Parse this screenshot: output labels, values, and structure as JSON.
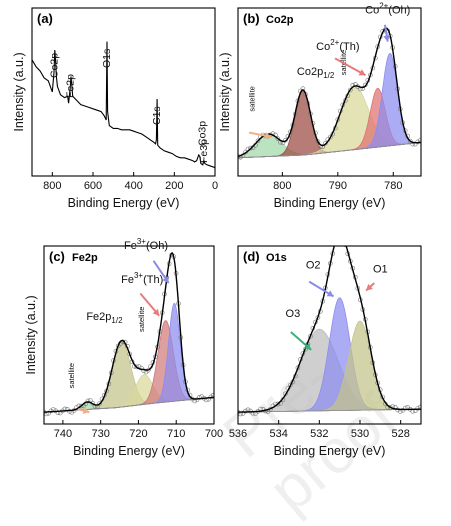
{
  "chart_data": [
    {
      "id": "a",
      "type": "line",
      "panel_label": "(a)",
      "xlabel": "Binding Energy (eV)",
      "ylabel": "Intensity (a.u.)",
      "xlim": [
        900,
        0
      ],
      "xticks": [
        800,
        600,
        400,
        200,
        0
      ],
      "survey": [
        [
          900,
          83
        ],
        [
          880,
          78
        ],
        [
          860,
          75
        ],
        [
          840,
          70
        ],
        [
          820,
          68
        ],
        [
          800,
          60
        ],
        [
          792,
          74
        ],
        [
          788,
          90
        ],
        [
          784,
          82
        ],
        [
          780,
          71
        ],
        [
          775,
          64
        ],
        [
          760,
          58
        ],
        [
          740,
          56
        ],
        [
          725,
          57
        ],
        [
          720,
          52
        ],
        [
          712,
          63
        ],
        [
          708,
          71
        ],
        [
          704,
          64
        ],
        [
          700,
          57
        ],
        [
          680,
          54
        ],
        [
          660,
          51
        ],
        [
          640,
          50
        ],
        [
          620,
          49
        ],
        [
          600,
          48
        ],
        [
          580,
          47
        ],
        [
          560,
          46
        ],
        [
          545,
          43
        ],
        [
          535,
          40
        ],
        [
          531,
          96
        ],
        [
          528,
          46
        ],
        [
          520,
          36
        ],
        [
          500,
          34
        ],
        [
          480,
          34
        ],
        [
          460,
          33
        ],
        [
          440,
          33
        ],
        [
          420,
          33
        ],
        [
          400,
          32
        ],
        [
          380,
          31
        ],
        [
          360,
          30
        ],
        [
          340,
          28
        ],
        [
          320,
          26
        ],
        [
          300,
          24
        ],
        [
          292,
          23
        ],
        [
          288,
          26
        ],
        [
          285,
          55
        ],
        [
          282,
          22
        ],
        [
          270,
          20
        ],
        [
          250,
          18
        ],
        [
          230,
          17
        ],
        [
          210,
          16
        ],
        [
          190,
          14
        ],
        [
          170,
          13
        ],
        [
          150,
          13
        ],
        [
          130,
          12
        ],
        [
          110,
          11
        ],
        [
          100,
          10
        ],
        [
          90,
          11
        ],
        [
          80,
          15
        ],
        [
          75,
          14
        ],
        [
          70,
          9
        ],
        [
          60,
          8
        ],
        [
          55,
          11
        ],
        [
          50,
          9
        ],
        [
          40,
          8
        ],
        [
          20,
          7
        ],
        [
          0,
          6
        ]
      ],
      "annotations": [
        {
          "text": "Co2p",
          "x": 790
        },
        {
          "text": "Fe2p",
          "x": 710
        },
        {
          "text": "O1s",
          "x": 531
        },
        {
          "text": "C1s",
          "x": 285
        },
        {
          "text": "Co3p",
          "x": 62
        },
        {
          "text": "Fe3p",
          "x": 55
        }
      ]
    },
    {
      "id": "b",
      "type": "area",
      "panel_label": "(b)",
      "element": "Co2p",
      "xlabel": "Binding Energy (eV)",
      "ylabel": "Intensity (a.u.)",
      "xlim": [
        808,
        775
      ],
      "xticks": [
        800,
        790,
        780
      ],
      "baseline": [
        [
          808,
          13
        ],
        [
          796,
          15
        ],
        [
          775,
          24
        ]
      ],
      "peaks": [
        {
          "name": "satellite",
          "center": 802.5,
          "height": 16,
          "fwhm": 5.5,
          "color": "#9fd8a8"
        },
        {
          "name": "Co2p1/2",
          "center": 796.3,
          "height": 46,
          "fwhm": 3.3,
          "color": "#9b4a40"
        },
        {
          "name": "satellite",
          "center": 787.0,
          "height": 45,
          "fwhm": 6.0,
          "color": "#d8d89a"
        },
        {
          "name": "Co2+(Th)",
          "center": 782.8,
          "height": 42,
          "fwhm": 3.2,
          "color": "#e07070"
        },
        {
          "name": "Co2+(Oh)",
          "center": 780.6,
          "height": 66,
          "fwhm": 3.2,
          "color": "#8c8cf0"
        }
      ],
      "annotations": [
        {
          "text": "Co2p",
          "sub": "1/2",
          "x": 794,
          "y": 72
        },
        {
          "text": "satellite",
          "x": 805,
          "y": 46
        },
        {
          "text": "satellite",
          "x": 788.5,
          "y": 72
        },
        {
          "text": "Co",
          "sup": "2+",
          "tail": "(Th)",
          "x": 790,
          "y": 90
        },
        {
          "text": "Co",
          "sup": "2+",
          "tail": "(Oh)",
          "x": 781,
          "y": 116
        }
      ]
    },
    {
      "id": "c",
      "type": "area",
      "panel_label": "(c)",
      "element": "Fe2p",
      "xlabel": "Binding Energy (eV)",
      "ylabel": "Intensity (a.u.)",
      "xlim": [
        745,
        700
      ],
      "xticks": [
        740,
        730,
        720,
        710,
        700
      ],
      "baseline": [
        [
          745,
          8
        ],
        [
          726,
          11
        ],
        [
          716,
          14
        ],
        [
          700,
          18
        ]
      ],
      "peaks": [
        {
          "name": "satellite",
          "center": 733.5,
          "height": 5,
          "fwhm": 3.5,
          "color": "#9fd8a8"
        },
        {
          "name": "Fe2p1/2",
          "center": 724.5,
          "height": 44,
          "fwhm": 5.8,
          "color": "#c4c48a"
        },
        {
          "name": "satellite",
          "center": 718.5,
          "height": 20,
          "fwhm": 5.5,
          "color": "#d8d89a"
        },
        {
          "name": "Fe3+(Th)",
          "center": 712.8,
          "height": 55,
          "fwhm": 4.8,
          "color": "#d07a7a"
        },
        {
          "name": "Fe3+(Oh)",
          "center": 710.5,
          "height": 66,
          "fwhm": 3.6,
          "color": "#8c8cf0"
        }
      ],
      "annotations": [
        {
          "text": "Fe2p",
          "sub": "1/2",
          "x": 729,
          "y": 70
        },
        {
          "text": "satellite",
          "x": 737,
          "y": 24
        },
        {
          "text": "satellite",
          "x": 718.5,
          "y": 62
        },
        {
          "text": "Fe",
          "sup": "3+",
          "tail": "(Th)",
          "x": 719,
          "y": 95
        },
        {
          "text": "Fe",
          "sup": "3+",
          "tail": "(Oh)",
          "x": 718,
          "y": 118
        }
      ]
    },
    {
      "id": "d",
      "type": "area",
      "panel_label": "(d)",
      "element": "O1s",
      "xlabel": "Binding Energy (eV)",
      "ylabel": "",
      "xlim": [
        536,
        527
      ],
      "xticks": [
        536,
        534,
        532,
        530,
        528
      ],
      "baseline": [
        [
          536,
          8
        ],
        [
          527,
          10
        ]
      ],
      "peaks": [
        {
          "name": "O3",
          "center": 532.0,
          "height": 55,
          "fwhm": 2.2,
          "color": "#bdbdbd"
        },
        {
          "name": "O2",
          "center": 531.0,
          "height": 76,
          "fwhm": 1.2,
          "color": "#8c8cf0"
        },
        {
          "name": "O1",
          "center": 530.0,
          "height": 60,
          "fwhm": 1.3,
          "color": "#c4c48a"
        }
      ],
      "annotations": [
        {
          "text": "O1",
          "x": 529.0,
          "y": 102
        },
        {
          "text": "O2",
          "x": 532.3,
          "y": 105
        },
        {
          "text": "O3",
          "x": 533.3,
          "y": 72
        }
      ]
    }
  ]
}
